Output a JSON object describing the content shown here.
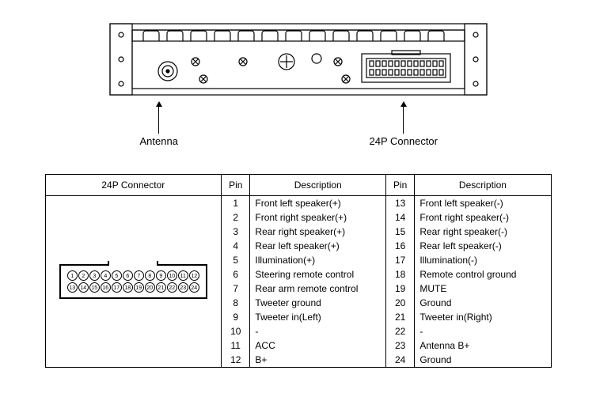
{
  "diagram": {
    "antenna_label": "Antenna",
    "connector_label": "24P Connector"
  },
  "table": {
    "headers": {
      "connector": "24P Connector",
      "pin_a": "Pin",
      "desc_a": "Description",
      "pin_b": "Pin",
      "desc_b": "Description"
    },
    "rows": [
      {
        "pa": "1",
        "da": "Front left speaker(+)",
        "pb": "13",
        "db": "Front left speaker(-)"
      },
      {
        "pa": "2",
        "da": "Front right speaker(+)",
        "pb": "14",
        "db": "Front right speaker(-)"
      },
      {
        "pa": "3",
        "da": "Rear right speaker(+)",
        "pb": "15",
        "db": "Rear right speaker(-)"
      },
      {
        "pa": "4",
        "da": "Rear left speaker(+)",
        "pb": "16",
        "db": "Rear left speaker(-)"
      },
      {
        "pa": "5",
        "da": "Illumination(+)",
        "pb": "17",
        "db": "Illumination(-)"
      },
      {
        "pa": "6",
        "da": "Steering remote control",
        "pb": "18",
        "db": "Remote control ground"
      },
      {
        "pa": "7",
        "da": "Rear arm remote control",
        "pb": "19",
        "db": "MUTE"
      },
      {
        "pa": "8",
        "da": "Tweeter ground",
        "pb": "20",
        "db": "Ground"
      },
      {
        "pa": "9",
        "da": "Tweeter in(Left)",
        "pb": "21",
        "db": "Tweeter in(Right)"
      },
      {
        "pa": "10",
        "da": "-",
        "pb": "22",
        "db": "-"
      },
      {
        "pa": "11",
        "da": "ACC",
        "pb": "23",
        "db": "Antenna B+"
      },
      {
        "pa": "12",
        "da": "B+",
        "pb": "24",
        "db": "Ground"
      }
    ],
    "thumb_pins_top": [
      "1",
      "2",
      "3",
      "4",
      "5",
      "6",
      "7",
      "8",
      "9",
      "10",
      "11",
      "12"
    ],
    "thumb_pins_bot": [
      "13",
      "14",
      "15",
      "16",
      "17",
      "18",
      "19",
      "20",
      "21",
      "22",
      "23",
      "24"
    ]
  },
  "style": {
    "line_color": "#000000",
    "bg": "#ffffff",
    "font_size_table": 12,
    "font_size_pins": 7
  }
}
